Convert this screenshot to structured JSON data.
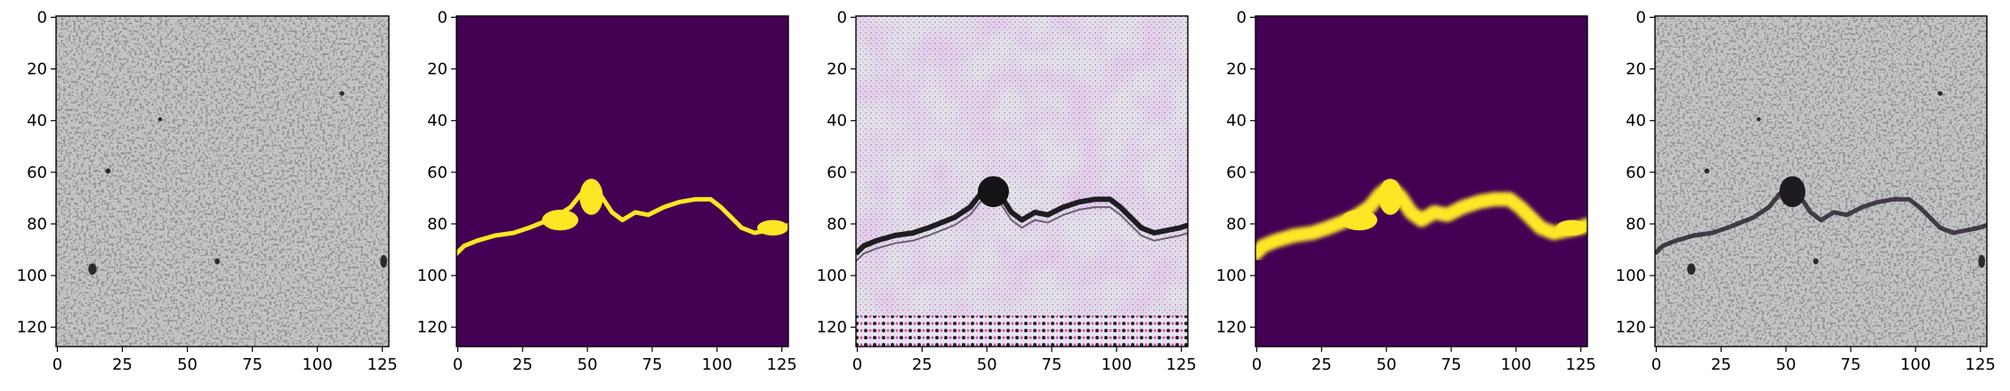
{
  "figure": {
    "panels": [
      {
        "name": "concrete-photo",
        "style": "photo",
        "crack": false
      },
      {
        "name": "crack-mask",
        "style": "mask",
        "crack": true
      },
      {
        "name": "generated-crack-image",
        "style": "generated",
        "crack": true
      },
      {
        "name": "predicted-crack-mask",
        "style": "prediction",
        "crack": true
      },
      {
        "name": "concrete-photo-with-crack",
        "style": "photo",
        "crack": true
      }
    ],
    "x_ticks": [
      0,
      25,
      50,
      75,
      100,
      125
    ],
    "y_ticks": [
      0,
      20,
      40,
      60,
      80,
      100,
      120
    ],
    "image_extent": 128,
    "crack_path": [
      [
        0,
        92
      ],
      [
        3,
        89
      ],
      [
        8,
        87
      ],
      [
        15,
        85
      ],
      [
        22,
        84
      ],
      [
        28,
        82
      ],
      [
        33,
        80
      ],
      [
        38,
        78
      ],
      [
        44,
        74
      ],
      [
        48,
        69
      ],
      [
        52,
        66
      ],
      [
        56,
        70
      ],
      [
        60,
        76
      ],
      [
        64,
        79
      ],
      [
        69,
        76
      ],
      [
        74,
        77
      ],
      [
        80,
        74
      ],
      [
        86,
        72
      ],
      [
        92,
        71
      ],
      [
        98,
        71
      ],
      [
        102,
        74
      ],
      [
        106,
        78
      ],
      [
        110,
        82
      ],
      [
        115,
        84
      ],
      [
        120,
        83
      ],
      [
        125,
        82
      ],
      [
        128,
        81
      ]
    ],
    "colors": {
      "mask_background": "#440154",
      "mask_crack": "#fde725",
      "concrete": "#c6c8c9",
      "axis": "#000000"
    }
  }
}
